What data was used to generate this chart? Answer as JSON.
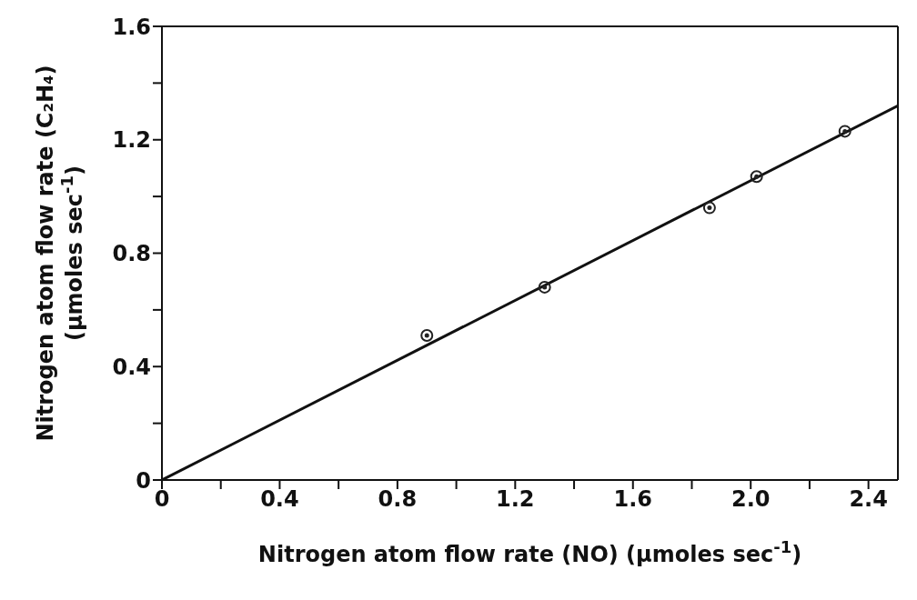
{
  "chart_data": {
    "type": "scatter",
    "xlabel": "Nitrogen atom flow rate (NO) (μmoles sec$^{-1}$)",
    "ylabel": "Nitrogen atom flow rate  (C₂H₄)\n(μmoles sec$^{-1}$)",
    "xlim": [
      0,
      2.5
    ],
    "ylim": [
      0,
      1.6
    ],
    "xticks": [
      0,
      {
        "value": 0.2,
        "label": null
      },
      0.4,
      {
        "value": 0.6,
        "label": null
      },
      0.8,
      {
        "value": 1.0,
        "label": null
      },
      1.2,
      {
        "value": 1.4,
        "label": null
      },
      1.6,
      {
        "value": 1.8,
        "label": null
      },
      {
        "value": 2.0,
        "label": "2.0"
      },
      {
        "value": 2.2,
        "label": null
      },
      2.4
    ],
    "yticks": [
      0,
      {
        "value": 0.2,
        "label": null
      },
      0.4,
      {
        "value": 0.6,
        "label": null
      },
      0.8,
      {
        "value": 1.0,
        "label": null
      },
      1.2,
      {
        "value": 1.4,
        "label": null
      },
      1.6
    ],
    "legend": false,
    "series": [
      {
        "color": "#222222",
        "marker": "circle",
        "x": [
          0.9,
          1.3,
          1.86,
          2.02,
          2.32
        ],
        "values": [
          0.51,
          0.68,
          0.96,
          1.07,
          1.23
        ]
      },
      {
        "type": "line",
        "color": "#111111",
        "marker": "none",
        "line_style": "solid",
        "x": [
          0,
          2.5
        ],
        "values": [
          0,
          1.32
        ]
      }
    ]
  }
}
